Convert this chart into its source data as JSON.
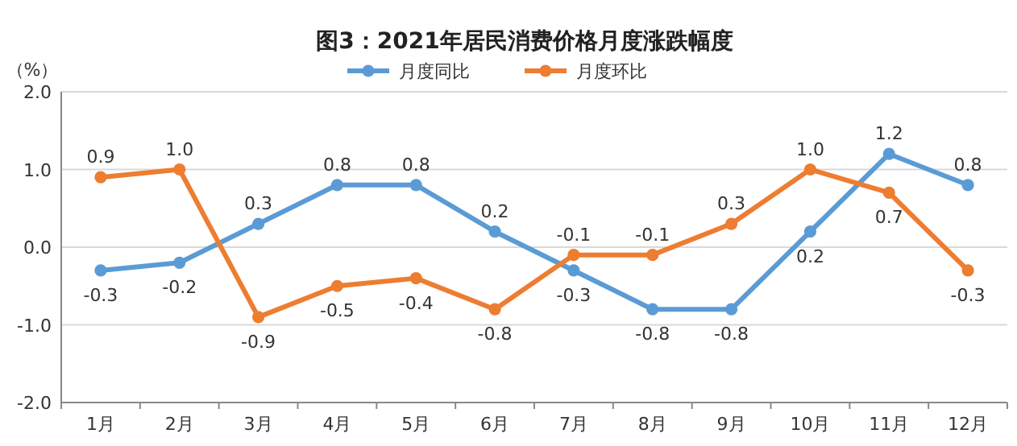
{
  "chart_data": {
    "type": "line",
    "title": "图3：2021年居民消费价格月度涨跌幅度",
    "ylabel": "（%）",
    "categories": [
      "1月",
      "2月",
      "3月",
      "4月",
      "5月",
      "6月",
      "7月",
      "8月",
      "9月",
      "10月",
      "11月",
      "12月"
    ],
    "series": [
      {
        "name": "月度同比",
        "color": "#5b9bd5",
        "values": [
          -0.3,
          -0.2,
          0.3,
          0.8,
          0.8,
          0.2,
          -0.3,
          -0.8,
          -0.8,
          0.2,
          1.2,
          0.8
        ],
        "value_labels": [
          "-0.3",
          "-0.2",
          "0.3",
          "0.8",
          "0.8",
          "0.2",
          "-0.3",
          "-0.8",
          "-0.8",
          "0.2",
          "1.2",
          "0.8"
        ]
      },
      {
        "name": "月度环比",
        "color": "#ed7d31",
        "values": [
          0.9,
          1.0,
          -0.9,
          -0.5,
          -0.4,
          -0.8,
          -0.1,
          -0.1,
          0.3,
          1.0,
          0.7,
          -0.3
        ],
        "value_labels": [
          "0.9",
          "1.0",
          "-0.9",
          "-0.5",
          "-0.4",
          "-0.8",
          "-0.1",
          "-0.1",
          "0.3",
          "1.0",
          "0.7",
          "-0.3"
        ]
      }
    ],
    "ylim": [
      -2,
      2
    ],
    "yticks": [
      {
        "value": -2,
        "label": "-2.0"
      },
      {
        "value": -1,
        "label": "-1.0"
      },
      {
        "value": 0,
        "label": "0.0"
      },
      {
        "value": 1,
        "label": "1.0"
      },
      {
        "value": 2,
        "label": "2.0"
      }
    ],
    "grid": "y",
    "legend": "top",
    "marker": "circle"
  }
}
